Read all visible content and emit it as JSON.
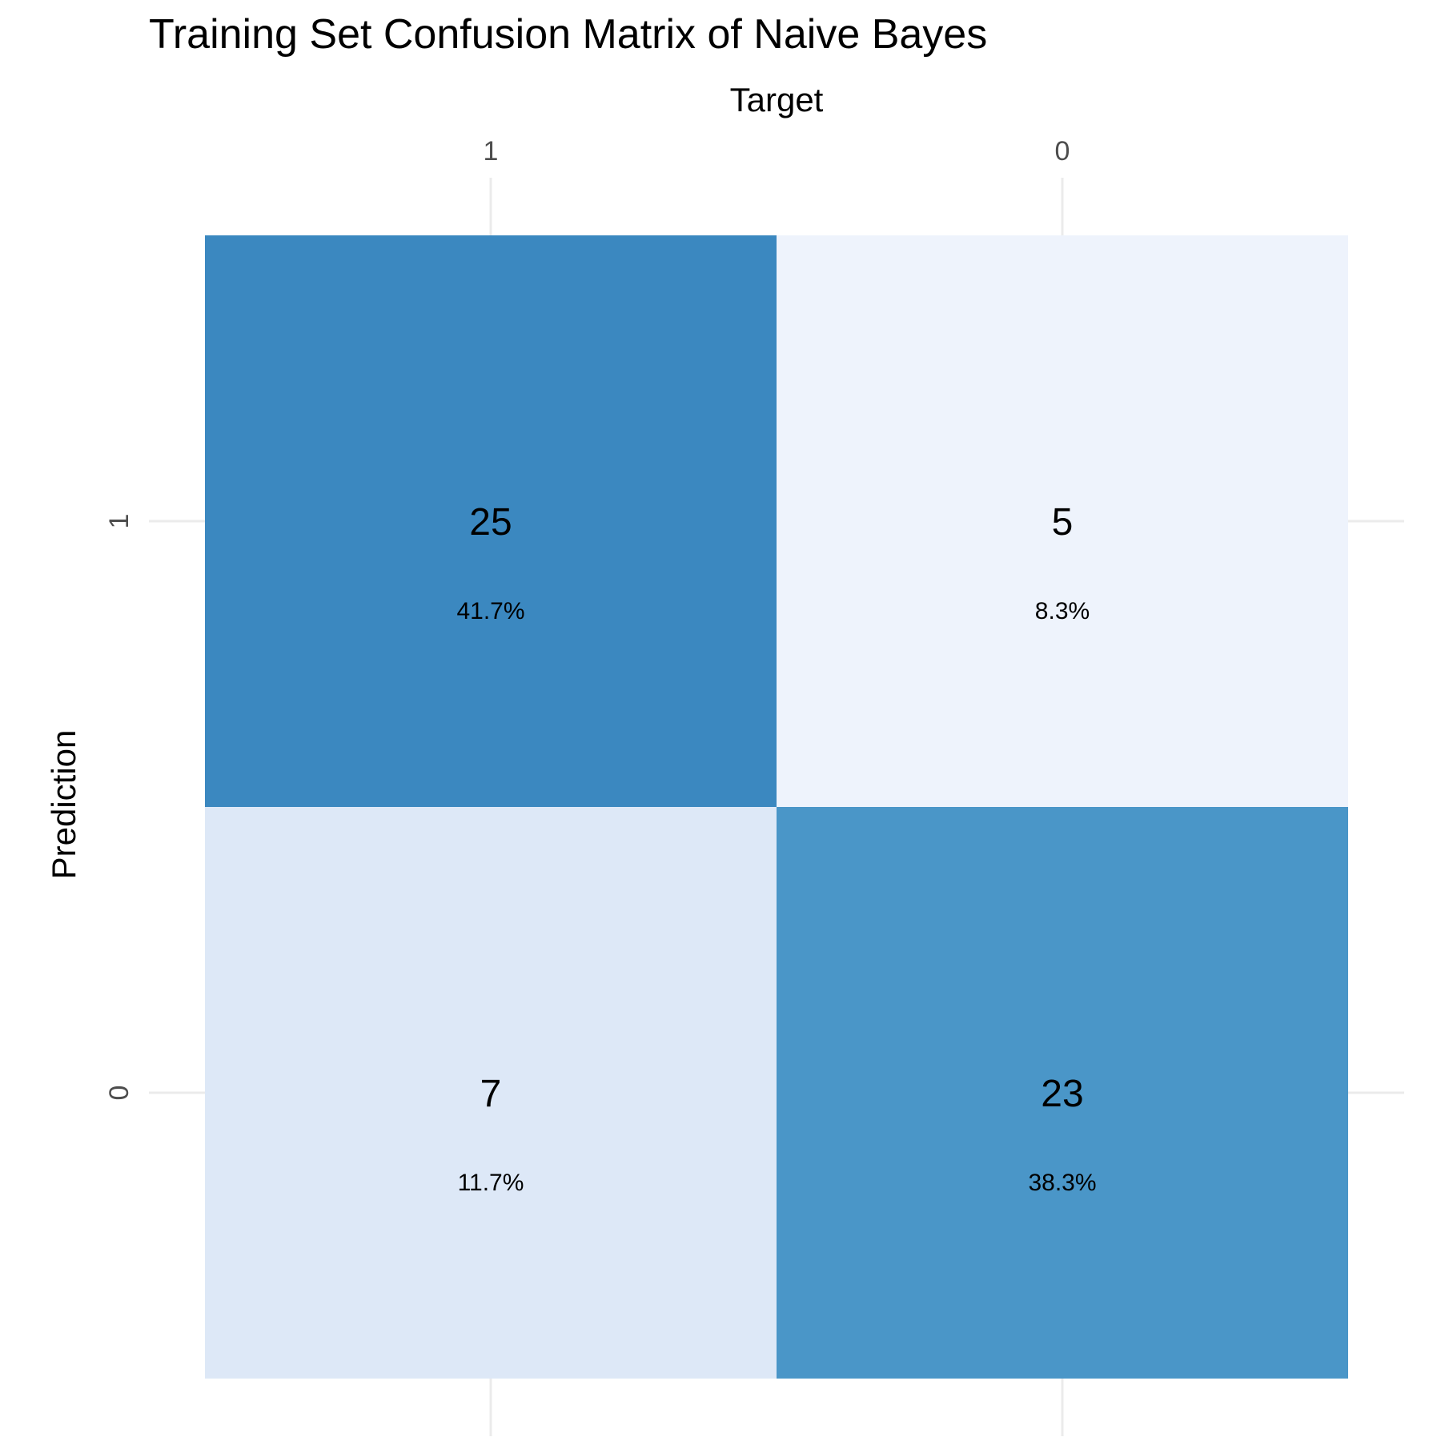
{
  "chart_data": {
    "type": "heatmap",
    "title": "Training Set Confusion Matrix of Naive Bayes",
    "xlabel": "Target",
    "ylabel": "Prediction",
    "x_categories": [
      "1",
      "0"
    ],
    "y_categories": [
      "1",
      "0"
    ],
    "cells": [
      {
        "target": "1",
        "prediction": "1",
        "count": "25",
        "percent": "41.7%",
        "color": "#3b88c0"
      },
      {
        "target": "0",
        "prediction": "1",
        "count": "5",
        "percent": "8.3%",
        "color": "#eef3fc"
      },
      {
        "target": "1",
        "prediction": "0",
        "count": "7",
        "percent": "11.7%",
        "color": "#dde8f7"
      },
      {
        "target": "0",
        "prediction": "0",
        "count": "23",
        "percent": "38.3%",
        "color": "#4a96c8"
      }
    ],
    "grid": true,
    "x_axis_position": "top",
    "colors": {
      "grid": "#ebebeb",
      "tick_label": "#4d4d4d",
      "text": "#000000"
    }
  }
}
